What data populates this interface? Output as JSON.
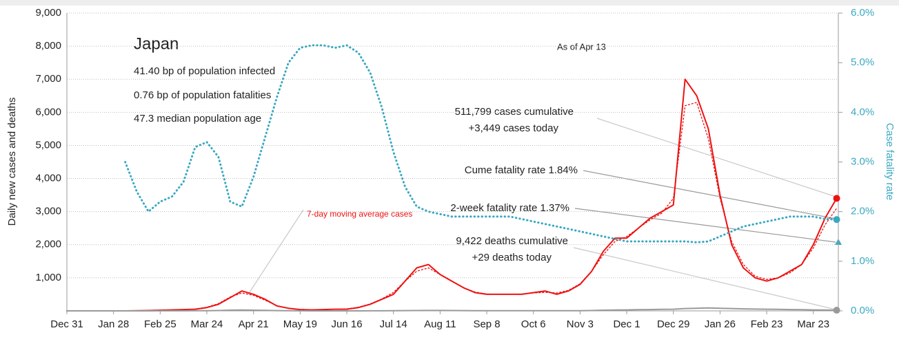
{
  "chart_data": {
    "type": "line",
    "title": "Japan",
    "notes": [
      "41.40 bp of population infected",
      "0.76 bp of population fatalities",
      "47.3 median population age"
    ],
    "as_of": "As of Apr 13",
    "annotations": [
      "511,799 cases cumulative",
      "+3,449 cases today",
      "Cume fatality rate 1.84%",
      "2-week fatality rate 1.37%",
      "9,422 deaths cumulative",
      "+29 deaths today"
    ],
    "ylabel": "Daily new cases and deaths",
    "y2label": "Case fatality rate",
    "x": [
      0,
      7,
      14,
      21,
      28,
      35,
      42,
      49,
      56,
      63,
      70,
      77,
      84,
      91,
      98,
      105,
      112,
      119,
      126,
      133,
      140,
      147,
      154,
      161,
      168,
      175,
      182,
      189,
      196,
      203,
      210,
      217,
      224,
      231,
      238,
      245,
      252,
      259,
      266,
      273,
      280,
      287,
      294,
      301,
      308,
      315,
      322,
      329,
      336,
      343,
      350,
      357,
      364,
      371,
      378,
      385,
      392,
      399,
      406,
      413,
      420,
      427,
      434,
      441,
      448,
      455,
      462
    ],
    "xlim": [
      0,
      463
    ],
    "xticks": [
      {
        "value": 0,
        "label": "Dec 31"
      },
      {
        "value": 28,
        "label": "Jan 28"
      },
      {
        "value": 56,
        "label": "Feb 25"
      },
      {
        "value": 84,
        "label": "Mar 24"
      },
      {
        "value": 112,
        "label": "Apr 21"
      },
      {
        "value": 140,
        "label": "May 19"
      },
      {
        "value": 168,
        "label": "Jun 16"
      },
      {
        "value": 196,
        "label": "Jul 14"
      },
      {
        "value": 224,
        "label": "Aug 11"
      },
      {
        "value": 252,
        "label": "Sep 8"
      },
      {
        "value": 280,
        "label": "Oct 6"
      },
      {
        "value": 308,
        "label": "Nov 3"
      },
      {
        "value": 336,
        "label": "Dec 1"
      },
      {
        "value": 364,
        "label": "Dec 29"
      },
      {
        "value": 392,
        "label": "Jan 26"
      },
      {
        "value": 420,
        "label": "Feb 23"
      },
      {
        "value": 448,
        "label": "Mar 23"
      }
    ],
    "ylim": [
      0,
      9000
    ],
    "yticks": [
      {
        "value": 1000,
        "label": "1,000"
      },
      {
        "value": 2000,
        "label": "2,000"
      },
      {
        "value": 3000,
        "label": "3,000"
      },
      {
        "value": 4000,
        "label": "4,000"
      },
      {
        "value": 5000,
        "label": "5,000"
      },
      {
        "value": 6000,
        "label": "6,000"
      },
      {
        "value": 7000,
        "label": "7,000"
      },
      {
        "value": 8000,
        "label": "8,000"
      },
      {
        "value": 9000,
        "label": "9,000"
      }
    ],
    "y2lim": [
      0,
      6
    ],
    "y2ticks": [
      {
        "value": 0,
        "label": "0.0%"
      },
      {
        "value": 1,
        "label": "1.0%"
      },
      {
        "value": 2,
        "label": "2.0%"
      },
      {
        "value": 3,
        "label": "3.0%"
      },
      {
        "value": 4,
        "label": "4.0%"
      },
      {
        "value": 5,
        "label": "5.0%"
      },
      {
        "value": 6,
        "label": "6.0%"
      }
    ],
    "grid": true,
    "series": [
      {
        "color": "#ee1111",
        "style": "solid",
        "values": [
          0,
          0,
          0,
          0,
          0,
          0,
          5,
          10,
          20,
          30,
          40,
          50,
          100,
          200,
          400,
          600,
          500,
          350,
          150,
          80,
          40,
          30,
          40,
          50,
          50,
          100,
          200,
          350,
          500,
          900,
          1300,
          1400,
          1100,
          900,
          700,
          550,
          500,
          500,
          500,
          500,
          550,
          600,
          500,
          600,
          800,
          1200,
          1800,
          2200,
          2200,
          2500,
          2800,
          3000,
          3200,
          7000,
          6500,
          5500,
          3500,
          2000,
          1300,
          1000,
          900,
          1000,
          1200,
          1400,
          2000,
          2800,
          3400
        ]
      },
      {
        "name": "7-day moving average cases",
        "color": "#ee1111",
        "style": "dotted",
        "values": [
          0,
          0,
          0,
          0,
          0,
          0,
          4,
          9,
          18,
          28,
          38,
          55,
          110,
          220,
          420,
          540,
          470,
          320,
          160,
          80,
          45,
          35,
          40,
          50,
          60,
          110,
          210,
          360,
          560,
          900,
          1200,
          1300,
          1100,
          900,
          700,
          570,
          510,
          500,
          500,
          510,
          540,
          560,
          540,
          620,
          820,
          1200,
          1700,
          2100,
          2250,
          2500,
          2750,
          2950,
          3400,
          6200,
          6300,
          5200,
          3400,
          2100,
          1400,
          1050,
          950,
          1000,
          1150,
          1400,
          1900,
          2600,
          3100
        ]
      },
      {
        "color": "#999999",
        "style": "solid",
        "values": [
          0,
          0,
          0,
          0,
          0,
          0,
          0,
          1,
          2,
          2,
          3,
          4,
          5,
          10,
          20,
          25,
          20,
          15,
          8,
          4,
          2,
          1,
          1,
          1,
          1,
          1,
          2,
          3,
          4,
          8,
          10,
          12,
          12,
          10,
          8,
          7,
          6,
          6,
          6,
          6,
          5,
          5,
          4,
          5,
          6,
          10,
          20,
          25,
          30,
          35,
          40,
          45,
          50,
          70,
          80,
          90,
          80,
          70,
          60,
          55,
          50,
          45,
          40,
          35,
          30,
          25,
          20
        ]
      },
      {
        "color": "#3aa8c1",
        "style": "dotted",
        "axis": "y2",
        "values": [
          null,
          null,
          null,
          null,
          null,
          3.0,
          2.4,
          2.0,
          2.2,
          2.3,
          2.6,
          3.3,
          3.4,
          3.1,
          2.2,
          2.1,
          2.7,
          3.5,
          4.3,
          5.0,
          5.3,
          5.35,
          5.35,
          5.3,
          5.35,
          5.2,
          4.8,
          4.1,
          3.2,
          2.5,
          2.1,
          2.0,
          1.95,
          1.9,
          1.9,
          1.9,
          1.9,
          1.9,
          1.9,
          1.85,
          1.8,
          1.75,
          1.7,
          1.65,
          1.6,
          1.55,
          1.5,
          1.45,
          1.4,
          1.4,
          1.4,
          1.4,
          1.4,
          1.4,
          1.38,
          1.4,
          1.5,
          1.6,
          1.7,
          1.75,
          1.8,
          1.85,
          1.9,
          1.9,
          1.9,
          1.85,
          1.84
        ]
      }
    ]
  }
}
